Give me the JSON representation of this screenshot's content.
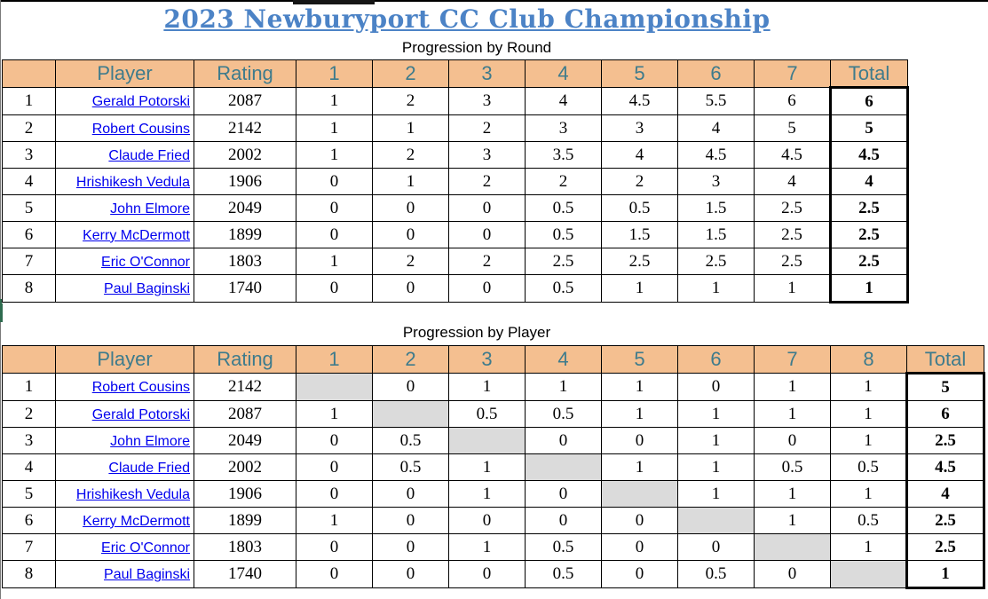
{
  "page": {
    "title": "2023 Newburyport CC Club Championship"
  },
  "colors": {
    "title_blue": "#4c83c6",
    "header_bg": "#f4bf90",
    "header_text": "#3e7b8c",
    "link_blue": "#0000ee",
    "diagonal_gray": "#dbdbdb",
    "grid_line": "#000000"
  },
  "round_table": {
    "subtitle": "Progression by Round",
    "columns": [
      "",
      "Player",
      "Rating",
      "1",
      "2",
      "3",
      "4",
      "5",
      "6",
      "7",
      "Total"
    ],
    "rows": [
      {
        "rank": "1",
        "player": "Gerald Potorski",
        "rating": "2087",
        "rounds": [
          "1",
          "2",
          "3",
          "4",
          "4.5",
          "5.5",
          "6"
        ],
        "total": "6"
      },
      {
        "rank": "2",
        "player": "Robert Cousins",
        "rating": "2142",
        "rounds": [
          "1",
          "1",
          "2",
          "3",
          "3",
          "4",
          "5"
        ],
        "total": "5"
      },
      {
        "rank": "3",
        "player": "Claude Fried",
        "rating": "2002",
        "rounds": [
          "1",
          "2",
          "3",
          "3.5",
          "4",
          "4.5",
          "4.5"
        ],
        "total": "4.5"
      },
      {
        "rank": "4",
        "player": "Hrishikesh Vedula",
        "rating": "1906",
        "rounds": [
          "0",
          "1",
          "2",
          "2",
          "2",
          "3",
          "4"
        ],
        "total": "4"
      },
      {
        "rank": "5",
        "player": "John Elmore",
        "rating": "2049",
        "rounds": [
          "0",
          "0",
          "0",
          "0.5",
          "0.5",
          "1.5",
          "2.5"
        ],
        "total": "2.5"
      },
      {
        "rank": "6",
        "player": "Kerry McDermott",
        "rating": "1899",
        "rounds": [
          "0",
          "0",
          "0",
          "0.5",
          "1.5",
          "1.5",
          "2.5"
        ],
        "total": "2.5"
      },
      {
        "rank": "7",
        "player": "Eric O'Connor",
        "rating": "1803",
        "rounds": [
          "1",
          "2",
          "2",
          "2.5",
          "2.5",
          "2.5",
          "2.5"
        ],
        "total": "2.5"
      },
      {
        "rank": "8",
        "player": "Paul Baginski",
        "rating": "1740",
        "rounds": [
          "0",
          "0",
          "0",
          "0.5",
          "1",
          "1",
          "1"
        ],
        "total": "1"
      }
    ]
  },
  "player_table": {
    "subtitle": "Progression by Player",
    "columns": [
      "",
      "Player",
      "Rating",
      "1",
      "2",
      "3",
      "4",
      "5",
      "6",
      "7",
      "8",
      "Total"
    ],
    "rows": [
      {
        "rank": "1",
        "player": "Robert Cousins",
        "rating": "2142",
        "cells": [
          "",
          "0",
          "1",
          "1",
          "1",
          "0",
          "1",
          "1"
        ],
        "total": "5"
      },
      {
        "rank": "2",
        "player": "Gerald Potorski",
        "rating": "2087",
        "cells": [
          "1",
          "",
          "0.5",
          "0.5",
          "1",
          "1",
          "1",
          "1"
        ],
        "total": "6"
      },
      {
        "rank": "3",
        "player": "John Elmore",
        "rating": "2049",
        "cells": [
          "0",
          "0.5",
          "",
          "0",
          "0",
          "1",
          "0",
          "1"
        ],
        "total": "2.5"
      },
      {
        "rank": "4",
        "player": "Claude Fried",
        "rating": "2002",
        "cells": [
          "0",
          "0.5",
          "1",
          "",
          "1",
          "1",
          "0.5",
          "0.5"
        ],
        "total": "4.5"
      },
      {
        "rank": "5",
        "player": "Hrishikesh Vedula",
        "rating": "1906",
        "cells": [
          "0",
          "0",
          "1",
          "0",
          "",
          "1",
          "1",
          "1"
        ],
        "total": "4"
      },
      {
        "rank": "6",
        "player": "Kerry McDermott",
        "rating": "1899",
        "cells": [
          "1",
          "0",
          "0",
          "0",
          "0",
          "",
          "1",
          "0.5"
        ],
        "total": "2.5"
      },
      {
        "rank": "7",
        "player": "Eric O'Connor",
        "rating": "1803",
        "cells": [
          "0",
          "0",
          "1",
          "0.5",
          "0",
          "0",
          "",
          "1"
        ],
        "total": "2.5"
      },
      {
        "rank": "8",
        "player": "Paul Baginski",
        "rating": "1740",
        "cells": [
          "0",
          "0",
          "0",
          "0.5",
          "0",
          "0.5",
          "0",
          ""
        ],
        "total": "1"
      }
    ]
  }
}
